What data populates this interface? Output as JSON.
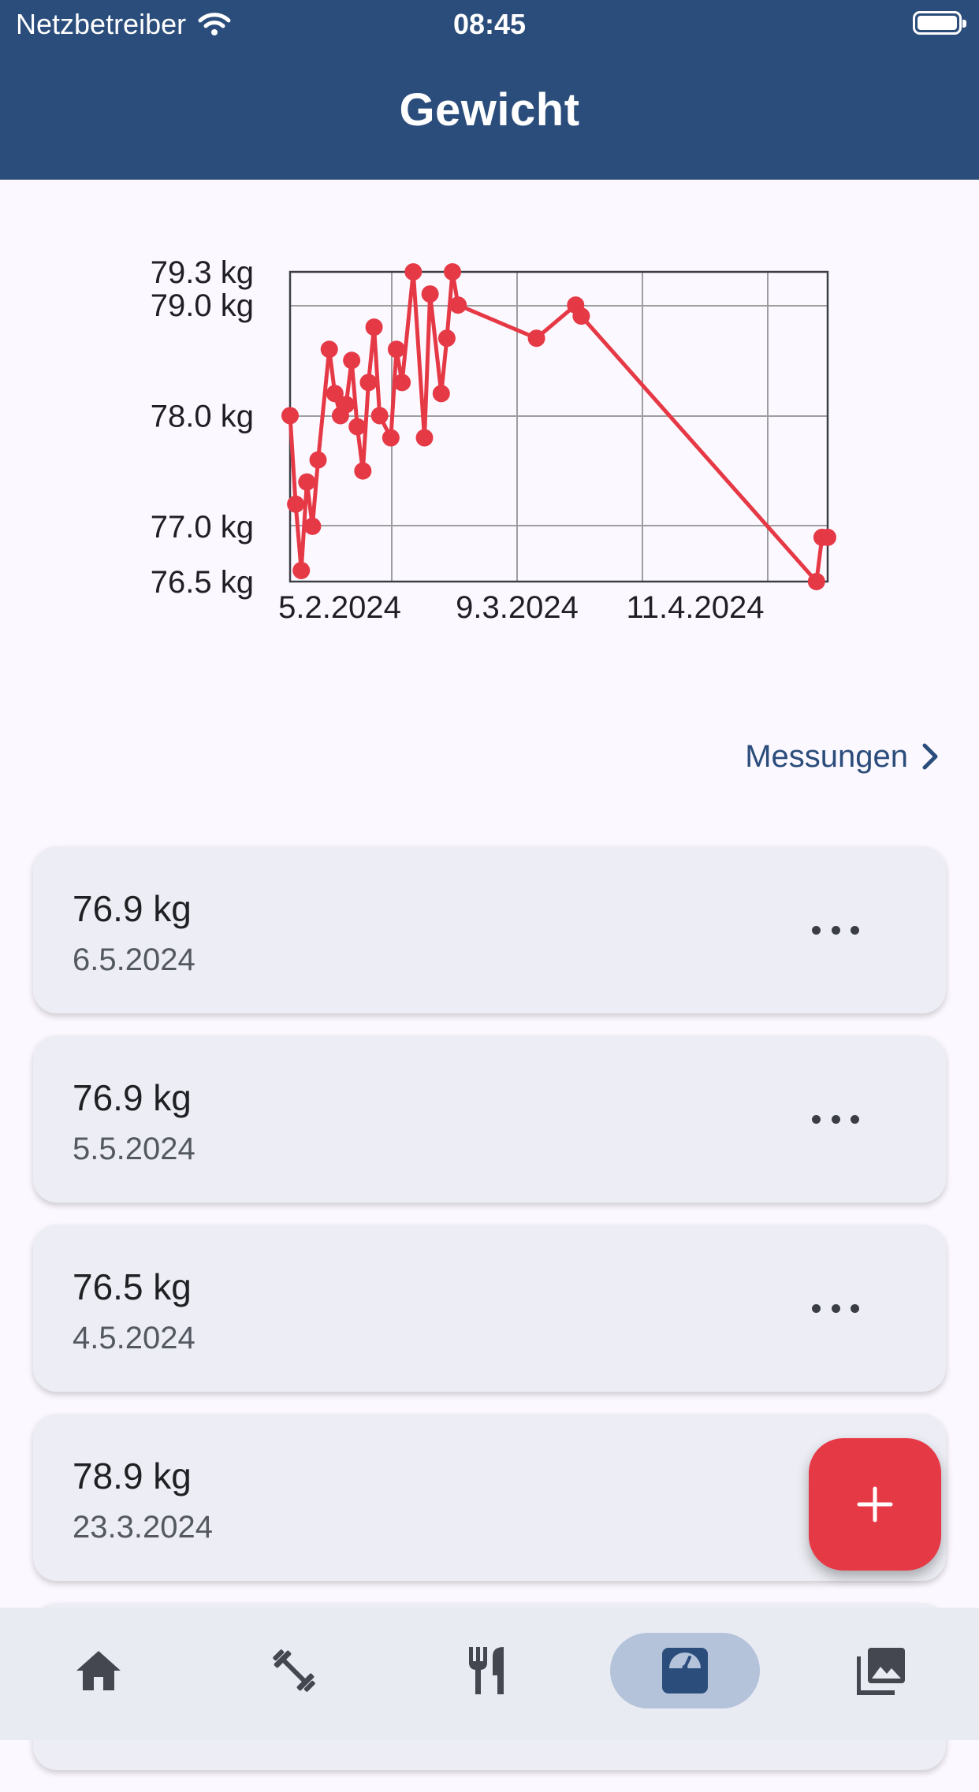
{
  "status": {
    "carrier": "Netzbetreiber",
    "time": "08:45"
  },
  "header": {
    "title": "Gewicht"
  },
  "chart_data": {
    "type": "line",
    "title": "",
    "xlabel": "",
    "ylabel": "",
    "x_tick_labels": [
      "5.2.2024",
      "9.3.2024",
      "11.4.2024"
    ],
    "y_tick_labels": [
      "79.3 kg",
      "79.0 kg",
      "78.0 kg",
      "77.0 kg",
      "76.5 kg"
    ],
    "ylim": [
      76.5,
      79.3
    ],
    "series": [
      {
        "color": "#e63946",
        "points": [
          {
            "x": "2024-01-31",
            "y": 78.0
          },
          {
            "x": "2024-02-01",
            "y": 77.2
          },
          {
            "x": "2024-02-02",
            "y": 76.6
          },
          {
            "x": "2024-02-03",
            "y": 77.4
          },
          {
            "x": "2024-02-04",
            "y": 77.0
          },
          {
            "x": "2024-02-05",
            "y": 77.6
          },
          {
            "x": "2024-02-07",
            "y": 78.6
          },
          {
            "x": "2024-02-08",
            "y": 78.2
          },
          {
            "x": "2024-02-09",
            "y": 78.0
          },
          {
            "x": "2024-02-10",
            "y": 78.1
          },
          {
            "x": "2024-02-11",
            "y": 78.5
          },
          {
            "x": "2024-02-12",
            "y": 77.9
          },
          {
            "x": "2024-02-13",
            "y": 77.5
          },
          {
            "x": "2024-02-14",
            "y": 78.3
          },
          {
            "x": "2024-02-15",
            "y": 78.8
          },
          {
            "x": "2024-02-16",
            "y": 78.0
          },
          {
            "x": "2024-02-18",
            "y": 77.8
          },
          {
            "x": "2024-02-19",
            "y": 78.6
          },
          {
            "x": "2024-02-20",
            "y": 78.3
          },
          {
            "x": "2024-02-22",
            "y": 79.3
          },
          {
            "x": "2024-02-24",
            "y": 77.8
          },
          {
            "x": "2024-02-25",
            "y": 79.1
          },
          {
            "x": "2024-02-27",
            "y": 78.2
          },
          {
            "x": "2024-02-28",
            "y": 78.7
          },
          {
            "x": "2024-02-29",
            "y": 79.3
          },
          {
            "x": "2024-03-01",
            "y": 79.0
          },
          {
            "x": "2024-03-15",
            "y": 78.7
          },
          {
            "x": "2024-03-22",
            "y": 79.0
          },
          {
            "x": "2024-03-23",
            "y": 78.9
          },
          {
            "x": "2024-05-04",
            "y": 76.5
          },
          {
            "x": "2024-05-05",
            "y": 76.9
          },
          {
            "x": "2024-05-06",
            "y": 76.9
          }
        ]
      }
    ],
    "grid": true
  },
  "measurements_link": {
    "label": "Messungen"
  },
  "entries": [
    {
      "weight": "76.9 kg",
      "date": "6.5.2024"
    },
    {
      "weight": "76.9 kg",
      "date": "5.5.2024"
    },
    {
      "weight": "76.5 kg",
      "date": "4.5.2024"
    },
    {
      "weight": "78.9 kg",
      "date": "23.3.2024"
    }
  ],
  "nav": {
    "items": [
      {
        "icon": "home-icon"
      },
      {
        "icon": "dumbbell-icon"
      },
      {
        "icon": "fork-knife-icon"
      },
      {
        "icon": "scale-icon",
        "active": true
      },
      {
        "icon": "gallery-icon"
      }
    ]
  },
  "colors": {
    "primary": "#2b4d7b",
    "accent": "#e63946",
    "card": "#edeef5"
  }
}
